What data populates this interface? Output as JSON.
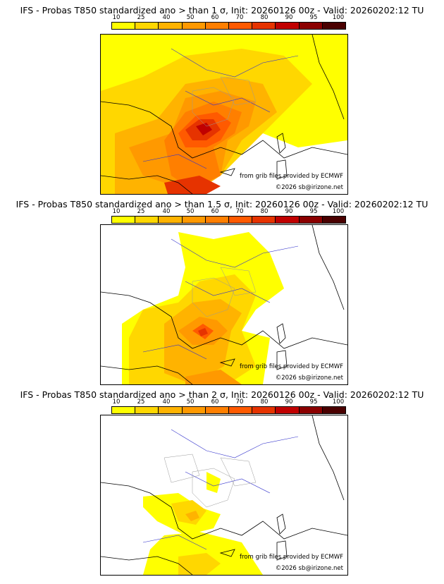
{
  "panels": [
    {
      "title": "IFS - Probas T850  standardized ano > than 1 σ, Init: 20260126 00z - Valid: 20260202:12 TU",
      "source_credit": "from grib files provided by ECMWF",
      "copyright": "©2026 sb@irizone.net"
    },
    {
      "title": "IFS - Probas T850  standardized ano > than 1.5 σ, Init: 20260126 00z - Valid: 20260202:12 TU",
      "source_credit": "from grib files provided by ECMWF",
      "copyright": "©2026 sb@irizone.net"
    },
    {
      "title": "IFS - Probas T850  standardized ano > than 2 σ, Init: 20260126 00z - Valid: 20260202:12 TU",
      "source_credit": "from grib files provided by ECMWF",
      "copyright": "©2026 sb@irizone.net"
    }
  ],
  "legend": {
    "labels": [
      "10",
      "25",
      "40",
      "50",
      "60",
      "70",
      "80",
      "90",
      "95",
      "100"
    ],
    "colors": [
      "#ffff00",
      "#ffd700",
      "#ffb300",
      "#ff9900",
      "#ff7f00",
      "#ff5a00",
      "#e63300",
      "#c00000",
      "#8b0000",
      "#4a0000"
    ]
  },
  "colors": {
    "land_boundary": "#000000",
    "rivers": "#3333cc",
    "regions": "#999999",
    "background": "#ffffff"
  }
}
